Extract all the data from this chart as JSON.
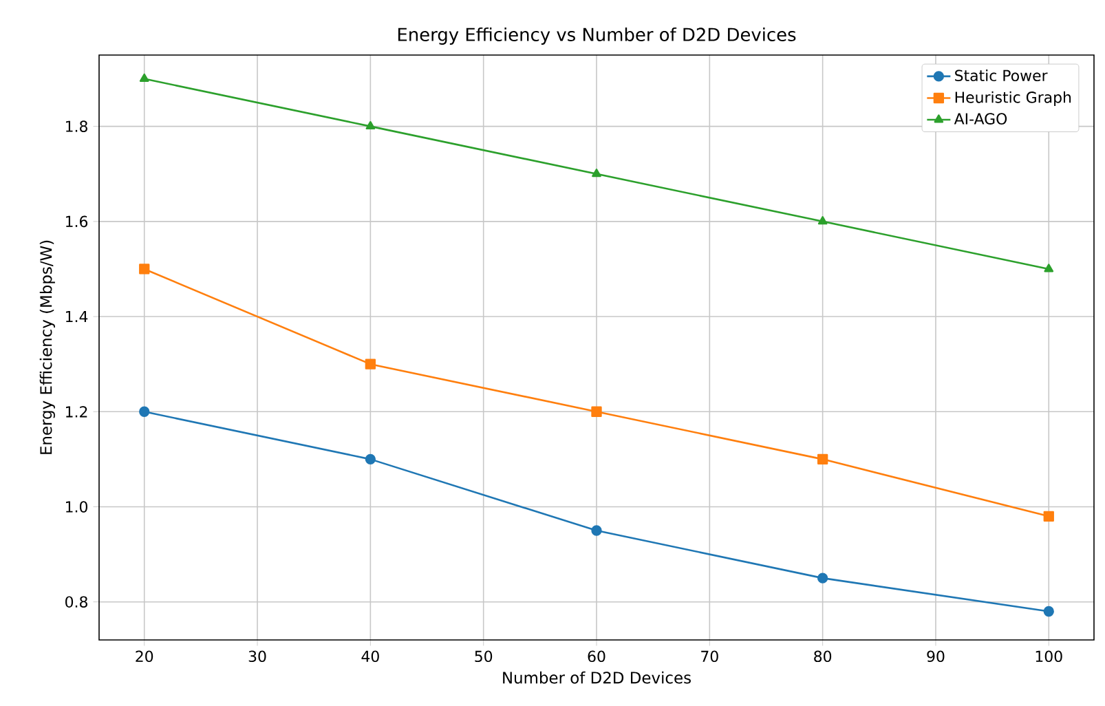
{
  "chart_data": {
    "type": "line",
    "title": "Energy Efficiency vs Number of D2D Devices",
    "xlabel": "Number of D2D Devices",
    "ylabel": "Energy Efficiency (Mbps/W)",
    "x": [
      20,
      40,
      60,
      80,
      100
    ],
    "series": [
      {
        "name": "Static Power",
        "color": "#1f77b4",
        "marker": "circle",
        "values": [
          1.2,
          1.1,
          0.95,
          0.85,
          0.78
        ]
      },
      {
        "name": "Heuristic Graph",
        "color": "#ff7f0e",
        "marker": "square",
        "values": [
          1.5,
          1.3,
          1.2,
          1.1,
          0.98
        ]
      },
      {
        "name": "AI-AGO",
        "color": "#2ca02c",
        "marker": "triangle",
        "values": [
          1.9,
          1.8,
          1.7,
          1.6,
          1.5
        ]
      }
    ],
    "xlim": [
      16,
      104
    ],
    "ylim": [
      0.72,
      1.95
    ],
    "xticks": [
      20,
      30,
      40,
      50,
      60,
      70,
      80,
      90,
      100
    ],
    "yticks": [
      0.8,
      {
        "value": 1.0,
        "label": "1.0"
      },
      1.2,
      1.4,
      1.6,
      1.8
    ],
    "grid": true,
    "legend": "top right",
    "line_style": "solid"
  }
}
